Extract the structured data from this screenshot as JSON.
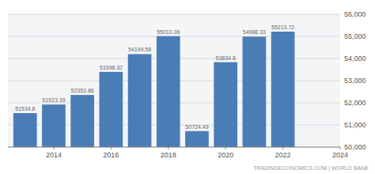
{
  "chart_data": {
    "type": "bar",
    "x": [
      2013,
      2014,
      2015,
      2016,
      2017,
      2018,
      2019,
      2020,
      2021,
      2022
    ],
    "values": [
      51534.8,
      51923.39,
      52353.86,
      53398.32,
      54199.58,
      55010.36,
      50724.49,
      53834.8,
      54988.33,
      55213.72
    ],
    "color": "#4a7db5",
    "data_labels": true,
    "xlim": [
      2012.4,
      2024.0
    ],
    "xticks": [
      2014,
      2016,
      2018,
      2020,
      2022,
      2024
    ],
    "ylim": [
      50000,
      56000
    ],
    "yticks": [
      {
        "value": 50000,
        "label": "50,000"
      },
      {
        "value": 51000,
        "label": "51,000"
      },
      {
        "value": 52000,
        "label": "52,000"
      },
      {
        "value": 53000,
        "label": "53,000"
      },
      {
        "value": 54000,
        "label": "54,000"
      },
      {
        "value": 55000,
        "label": "55,000"
      },
      {
        "value": 56000,
        "label": "56,000"
      }
    ],
    "grid": true,
    "annotations": [
      "TRADINGECONOMICS.COM | WORLD BANK"
    ]
  }
}
